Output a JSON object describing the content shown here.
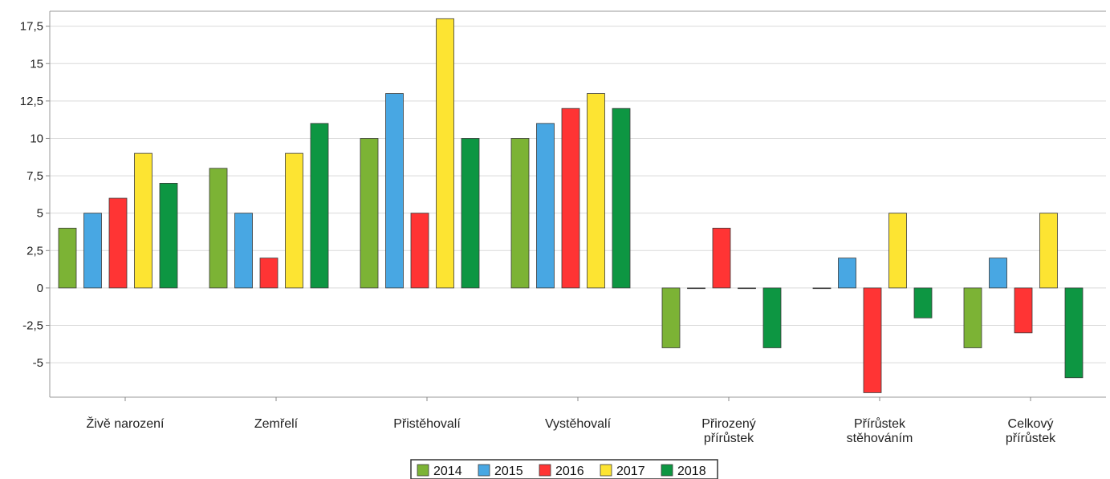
{
  "chart_data": {
    "type": "bar",
    "categories": [
      [
        "Živě narození"
      ],
      [
        "Zemřelí"
      ],
      [
        "Přistěhovalí"
      ],
      [
        "Vystěhovalí"
      ],
      [
        "Přirozený",
        "přírůstek"
      ],
      [
        "Přírůstek",
        "stěhováním"
      ],
      [
        "Celkový",
        "přírůstek"
      ]
    ],
    "series": [
      {
        "name": "2014",
        "color": "#7cb335",
        "values": [
          4,
          8,
          10,
          10,
          -4,
          0,
          -4
        ]
      },
      {
        "name": "2015",
        "color": "#48a7e3",
        "values": [
          5,
          5,
          13,
          11,
          0,
          2,
          2
        ]
      },
      {
        "name": "2016",
        "color": "#ff3434",
        "values": [
          6,
          2,
          5,
          12,
          4,
          -7,
          -3
        ]
      },
      {
        "name": "2017",
        "color": "#fde432",
        "values": [
          9,
          9,
          18,
          13,
          0,
          5,
          5
        ]
      },
      {
        "name": "2018",
        "color": "#0d9642",
        "values": [
          7,
          11,
          10,
          12,
          -4,
          -2,
          -6
        ]
      }
    ],
    "ylim": [
      -7.3,
      18.5
    ],
    "yticks": [
      -5,
      -2.5,
      0,
      2.5,
      5,
      7.5,
      10,
      12.5,
      15,
      17.5
    ],
    "ytick_labels": [
      "-5",
      "-2,5",
      "0",
      "2,5",
      "5",
      "7,5",
      "10",
      "12,5",
      "15",
      "17,5"
    ],
    "grid": true,
    "legend": "bottom"
  }
}
